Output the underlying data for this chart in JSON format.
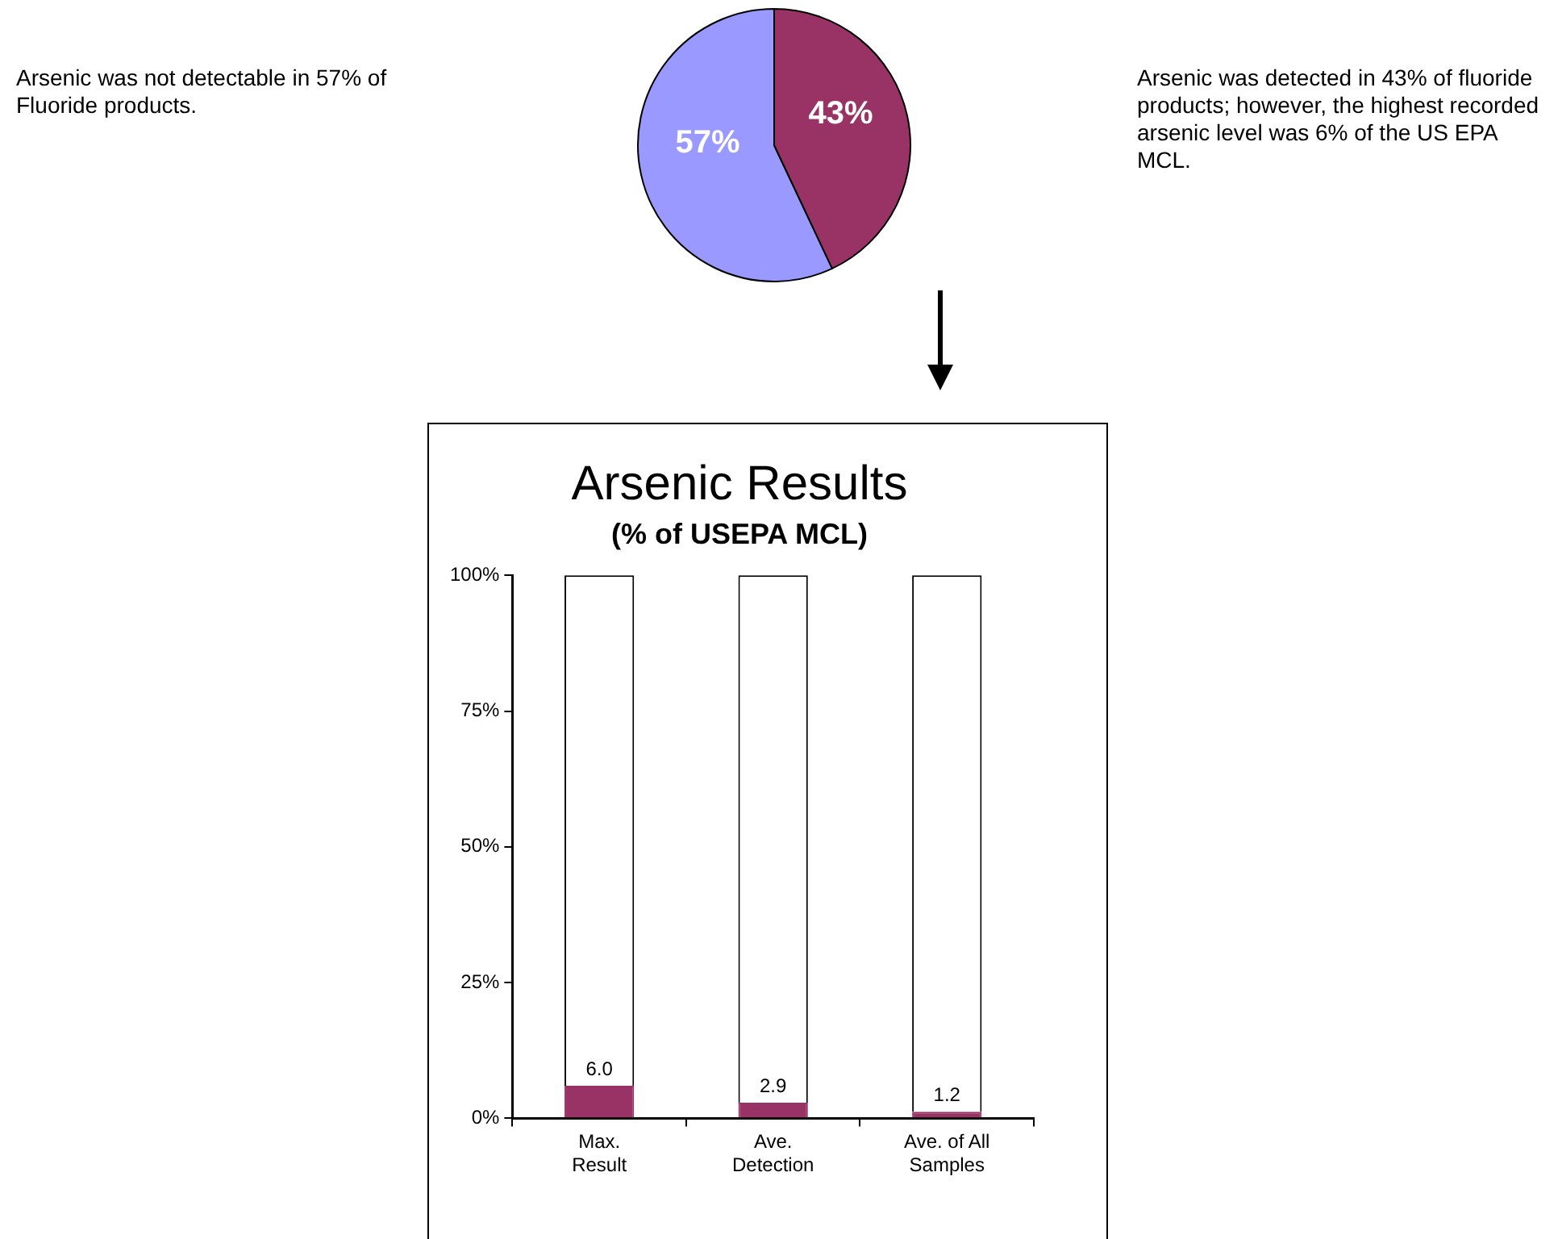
{
  "chart_data": [
    {
      "type": "pie",
      "categories": [
        null,
        null
      ],
      "values": [
        57,
        43
      ],
      "colors": [
        "#9999ff",
        "#993366"
      ],
      "value_labels": [
        "57%",
        "43%"
      ],
      "annotations": [
        "Arsenic was not detectable in 57% of Fluoride products.",
        "Arsenic was detected in 43% of fluoride products; however, the highest recorded arsenic level was 6% of the US EPA MCL."
      ]
    },
    {
      "type": "bar",
      "title": "Arsenic Results",
      "subtitle": "(% of USEPA MCL)",
      "categories": [
        "Max.\nResult",
        "Ave.\nDetection",
        "Ave. of All\nSamples"
      ],
      "stacked": true,
      "series": [
        {
          "color": "#993366",
          "values": [
            6.0,
            2.9,
            1.2
          ],
          "value_labels": [
            "6.0",
            "2.9",
            "1.2"
          ]
        },
        {
          "color": "#ffffff",
          "values": [
            94,
            97.1,
            98.8
          ]
        }
      ],
      "ylim": [
        0,
        100
      ],
      "yticks": [
        {
          "value": 0,
          "label": "0%"
        },
        {
          "value": 25,
          "label": "25%"
        },
        {
          "value": 50,
          "label": "50%"
        },
        {
          "value": 75,
          "label": "75%"
        },
        {
          "value": 100,
          "label": "100%"
        }
      ],
      "grid": false,
      "legend": false
    }
  ]
}
